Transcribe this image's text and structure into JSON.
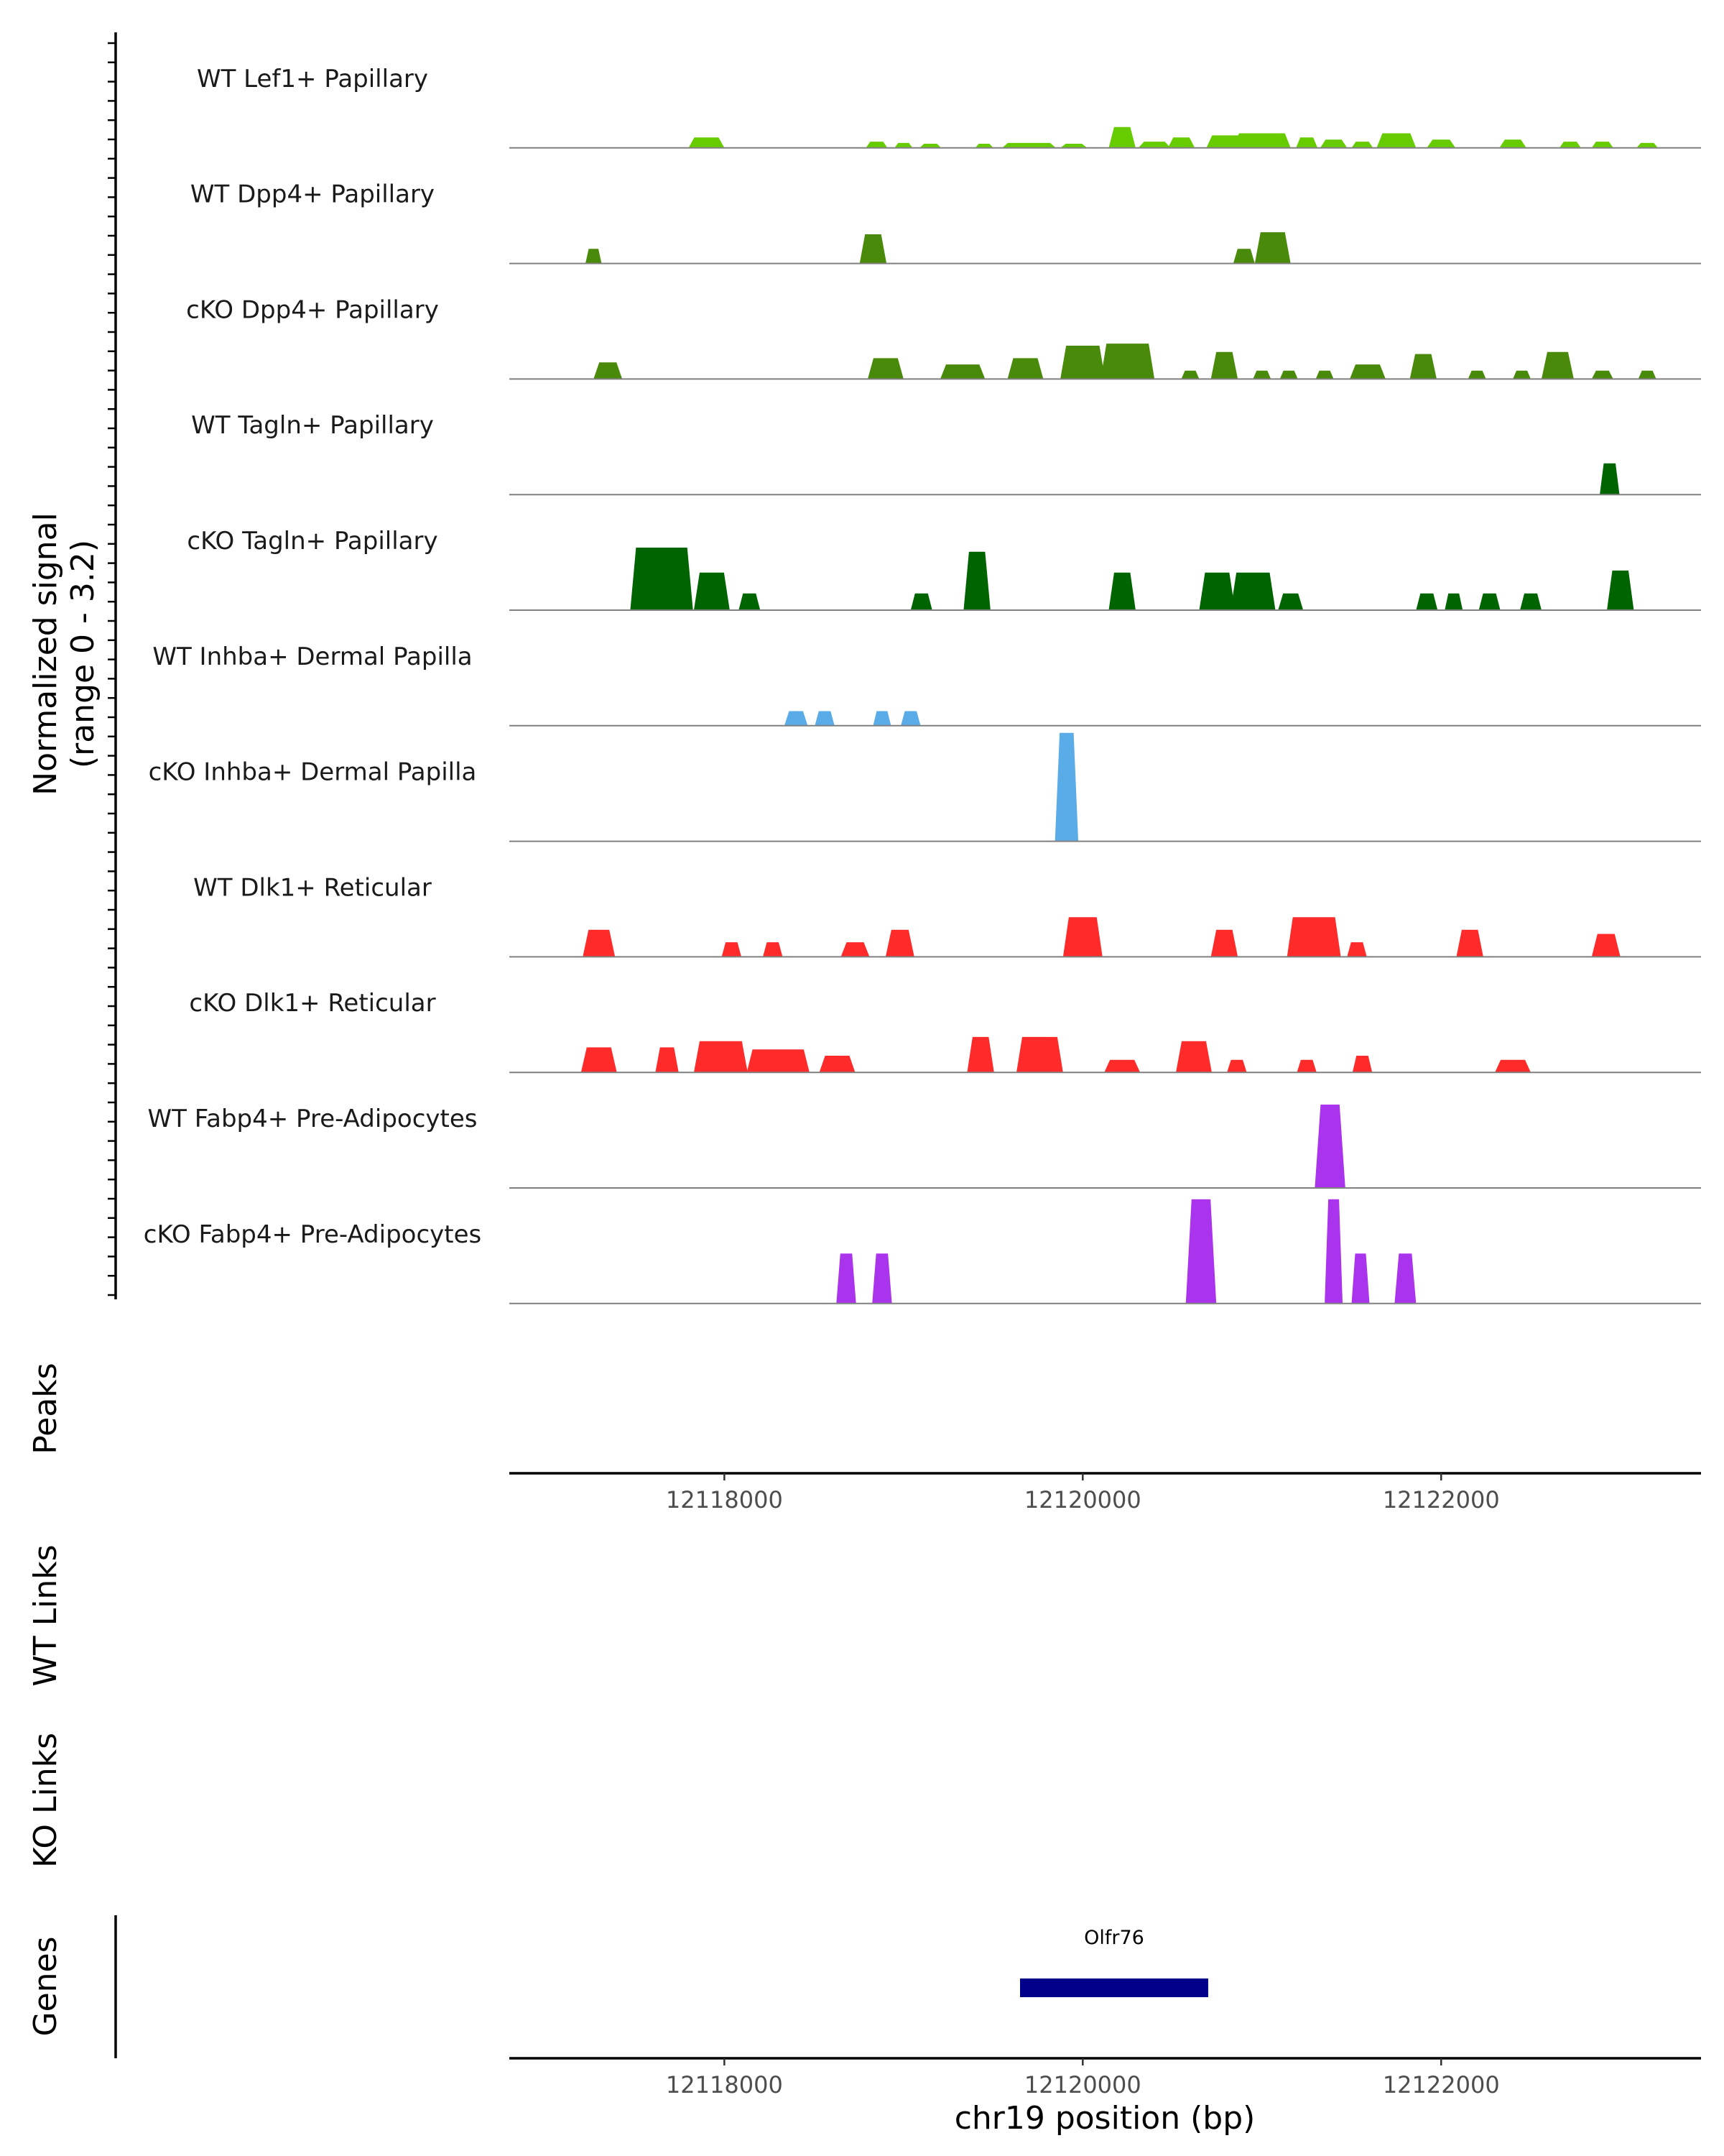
{
  "chart_data": {
    "type": "area",
    "title": "",
    "chromosome": "chr19",
    "xlabel": "chr19 position (bp)",
    "xlim": [
      12116800,
      12123450
    ],
    "x_ticks": [
      12118000,
      12120000,
      12122000
    ],
    "x_tick_labels": [
      "12118000",
      "12120000",
      "12122000"
    ],
    "coverage_ylabel": [
      "Normalized signal",
      "(range 0 - 3.2)"
    ],
    "ylim": [
      0,
      3.2
    ],
    "panel_labels": {
      "peaks": "Peaks",
      "wt_links": "WT Links",
      "ko_links": "KO Links",
      "genes": "Genes"
    },
    "colors": {
      "lef1": "#66cc00",
      "dpp4": "#4a8a0b",
      "tagln": "#006400",
      "inhba": "#5aace8",
      "dlk1": "#ff2b2b",
      "fabp4": "#aa33ee",
      "gene": "#00008b",
      "baseline": "#808080",
      "axis": "#000000"
    },
    "tracks": [
      {
        "name": "WT Lef1+ Papillary",
        "color_key": "lef1",
        "peaks": [
          [
            12117900,
            200,
            0.25
          ],
          [
            12118850,
            120,
            0.15
          ],
          [
            12119000,
            100,
            0.12
          ],
          [
            12119150,
            120,
            0.1
          ],
          [
            12119450,
            100,
            0.1
          ],
          [
            12119700,
            300,
            0.12
          ],
          [
            12119950,
            150,
            0.1
          ],
          [
            12120220,
            150,
            0.5
          ],
          [
            12120400,
            180,
            0.15
          ],
          [
            12120550,
            150,
            0.25
          ],
          [
            12120800,
            220,
            0.3
          ],
          [
            12121000,
            320,
            0.35
          ],
          [
            12121250,
            120,
            0.25
          ],
          [
            12121400,
            150,
            0.2
          ],
          [
            12121560,
            120,
            0.15
          ],
          [
            12121750,
            220,
            0.35
          ],
          [
            12122000,
            160,
            0.2
          ],
          [
            12122400,
            150,
            0.2
          ],
          [
            12122720,
            120,
            0.15
          ],
          [
            12122900,
            120,
            0.15
          ],
          [
            12123150,
            120,
            0.12
          ]
        ]
      },
      {
        "name": "WT Dpp4+ Papillary",
        "color_key": "dpp4",
        "peaks": [
          [
            12117270,
            90,
            0.35
          ],
          [
            12118830,
            150,
            0.7
          ],
          [
            12120900,
            120,
            0.35
          ],
          [
            12121060,
            200,
            0.75
          ]
        ]
      },
      {
        "name": "cKO Dpp4+ Papillary",
        "color_key": "dpp4",
        "peaks": [
          [
            12117350,
            160,
            0.4
          ],
          [
            12118900,
            200,
            0.5
          ],
          [
            12119330,
            250,
            0.35
          ],
          [
            12119680,
            200,
            0.5
          ],
          [
            12120000,
            250,
            0.8
          ],
          [
            12120250,
            300,
            0.85
          ],
          [
            12120600,
            100,
            0.2
          ],
          [
            12120790,
            150,
            0.65
          ],
          [
            12121000,
            100,
            0.2
          ],
          [
            12121150,
            100,
            0.2
          ],
          [
            12121350,
            100,
            0.2
          ],
          [
            12121590,
            200,
            0.35
          ],
          [
            12121900,
            150,
            0.6
          ],
          [
            12122200,
            100,
            0.2
          ],
          [
            12122450,
            100,
            0.2
          ],
          [
            12122650,
            180,
            0.65
          ],
          [
            12122900,
            120,
            0.2
          ],
          [
            12123150,
            100,
            0.2
          ]
        ]
      },
      {
        "name": "WT Tagln+ Papillary",
        "color_key": "tagln",
        "peaks": [
          [
            12122940,
            110,
            0.75
          ]
        ]
      },
      {
        "name": "cKO Tagln+ Papillary",
        "color_key": "tagln",
        "peaks": [
          [
            12117650,
            350,
            1.5
          ],
          [
            12117930,
            200,
            0.9
          ],
          [
            12118140,
            120,
            0.4
          ],
          [
            12119100,
            120,
            0.4
          ],
          [
            12119410,
            150,
            1.4
          ],
          [
            12120220,
            150,
            0.9
          ],
          [
            12120750,
            200,
            0.9
          ],
          [
            12120950,
            250,
            0.9
          ],
          [
            12121160,
            140,
            0.4
          ],
          [
            12121920,
            120,
            0.4
          ],
          [
            12122070,
            100,
            0.4
          ],
          [
            12122270,
            120,
            0.4
          ],
          [
            12122500,
            120,
            0.4
          ],
          [
            12123000,
            150,
            0.95
          ]
        ]
      },
      {
        "name": "WT Inhba+ Dermal Papilla",
        "color_key": "inhba",
        "peaks": [
          [
            12118400,
            130,
            0.35
          ],
          [
            12118560,
            110,
            0.35
          ],
          [
            12118880,
            100,
            0.35
          ],
          [
            12119040,
            110,
            0.35
          ]
        ]
      },
      {
        "name": "cKO Inhba+ Dermal Papilla",
        "color_key": "inhba",
        "peaks": [
          [
            12119910,
            130,
            2.6
          ]
        ]
      },
      {
        "name": "WT Dlk1+ Reticular",
        "color_key": "dlk1",
        "peaks": [
          [
            12117300,
            180,
            0.65
          ],
          [
            12118040,
            110,
            0.35
          ],
          [
            12118270,
            110,
            0.35
          ],
          [
            12118730,
            160,
            0.35
          ],
          [
            12118980,
            160,
            0.65
          ],
          [
            12120000,
            220,
            0.95
          ],
          [
            12120790,
            150,
            0.65
          ],
          [
            12121290,
            300,
            0.95
          ],
          [
            12121530,
            110,
            0.35
          ],
          [
            12122160,
            150,
            0.65
          ],
          [
            12122920,
            160,
            0.55
          ]
        ]
      },
      {
        "name": "cKO Dlk1+ Reticular",
        "color_key": "dlk1",
        "peaks": [
          [
            12117300,
            200,
            0.6
          ],
          [
            12117680,
            130,
            0.6
          ],
          [
            12117980,
            300,
            0.75
          ],
          [
            12118300,
            350,
            0.55
          ],
          [
            12118630,
            200,
            0.4
          ],
          [
            12119430,
            150,
            0.85
          ],
          [
            12119760,
            260,
            0.85
          ],
          [
            12120220,
            200,
            0.3
          ],
          [
            12120620,
            200,
            0.75
          ],
          [
            12120860,
            110,
            0.3
          ],
          [
            12121250,
            110,
            0.3
          ],
          [
            12121560,
            110,
            0.4
          ],
          [
            12122400,
            200,
            0.3
          ]
        ]
      },
      {
        "name": "WT Fabp4+ Pre-Adipocytes",
        "color_key": "fabp4",
        "peaks": [
          [
            12121380,
            170,
            2.0
          ]
        ]
      },
      {
        "name": "cKO Fabp4+ Pre-Adipocytes",
        "color_key": "fabp4",
        "peaks": [
          [
            12118680,
            110,
            1.2
          ],
          [
            12118880,
            110,
            1.2
          ],
          [
            12120660,
            170,
            2.5
          ],
          [
            12121400,
            100,
            2.5
          ],
          [
            12121550,
            100,
            1.2
          ],
          [
            12121800,
            120,
            1.2
          ]
        ]
      }
    ],
    "genes": [
      {
        "name": "Olfr76",
        "start": 12119650,
        "end": 12120700
      }
    ]
  }
}
